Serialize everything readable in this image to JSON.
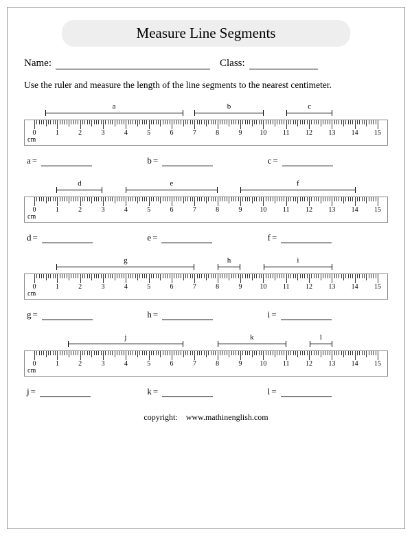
{
  "title": "Measure Line Segments",
  "name_label": "Name:",
  "class_label": "Class:",
  "instructions": "Use the ruler and measure the length of the line segments to the nearest centimeter.",
  "ruler": {
    "min": 0,
    "max": 15,
    "unit": "cm",
    "minor_per_major": 10,
    "tick_color": "#333333",
    "border_color": "#888888"
  },
  "exercises": [
    {
      "segments": [
        {
          "label": "a",
          "start": 0.5,
          "end": 6.5
        },
        {
          "label": "b",
          "start": 7.0,
          "end": 10.0
        },
        {
          "label": "c",
          "start": 11.0,
          "end": 13.0
        }
      ],
      "answers": [
        "a",
        "b",
        "c"
      ]
    },
    {
      "segments": [
        {
          "label": "d",
          "start": 1.0,
          "end": 3.0
        },
        {
          "label": "e",
          "start": 4.0,
          "end": 8.0
        },
        {
          "label": "f",
          "start": 9.0,
          "end": 14.0
        }
      ],
      "answers": [
        "d",
        "e",
        "f"
      ]
    },
    {
      "segments": [
        {
          "label": "g",
          "start": 1.0,
          "end": 7.0
        },
        {
          "label": "h",
          "start": 8.0,
          "end": 9.0
        },
        {
          "label": "i",
          "start": 10.0,
          "end": 13.0
        }
      ],
      "answers": [
        "g",
        "h",
        "i"
      ]
    },
    {
      "segments": [
        {
          "label": "j",
          "start": 1.5,
          "end": 6.5
        },
        {
          "label": "k",
          "start": 8.0,
          "end": 11.0
        },
        {
          "label": "l",
          "start": 12.0,
          "end": 13.0
        }
      ],
      "answers": [
        "j",
        "k",
        "l"
      ]
    }
  ],
  "equals": "=",
  "copyright_label": "copyright:",
  "copyright_site": "www.mathinenglish.com",
  "colors": {
    "title_bg": "#eeeeee",
    "text": "#000000",
    "page_border": "#999999"
  }
}
